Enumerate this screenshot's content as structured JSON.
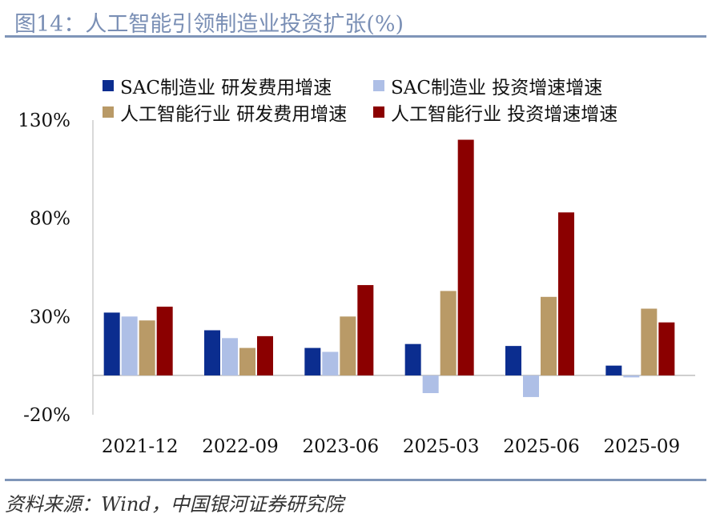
{
  "title": "图14：人工智能引领制造业投资扩张(%)",
  "source": "资料来源：Wind，中国银河证券研究院",
  "colors": {
    "title": "#7a8fb5",
    "rule": "#7f95b8",
    "series": [
      "#0b2d8f",
      "#aebfe6",
      "#b99a67",
      "#8b0000"
    ]
  },
  "chart_data": {
    "type": "bar",
    "categories": [
      "2021-12",
      "2022-09",
      "2023-06",
      "2025-03",
      "2025-06",
      "2025-09"
    ],
    "series": [
      {
        "name": "SAC制造业 研发费用增速",
        "values": [
          32,
          23,
          14,
          16,
          15,
          5
        ]
      },
      {
        "name": "SAC制造业 投资增速增速",
        "values": [
          30,
          19,
          12,
          -9,
          -11,
          -1
        ]
      },
      {
        "name": "人工智能行业 研发费用增速",
        "values": [
          28,
          14,
          30,
          43,
          40,
          34
        ]
      },
      {
        "name": "人工智能行业 投资增速增速",
        "values": [
          35,
          20,
          46,
          120,
          83,
          27
        ]
      }
    ],
    "yticks": [
      "130%",
      "80%",
      "30%",
      "-20%"
    ],
    "ytick_values": [
      130,
      80,
      30,
      -20
    ],
    "ylim": [
      -20,
      130
    ],
    "grid": false,
    "legend_position": "top"
  }
}
